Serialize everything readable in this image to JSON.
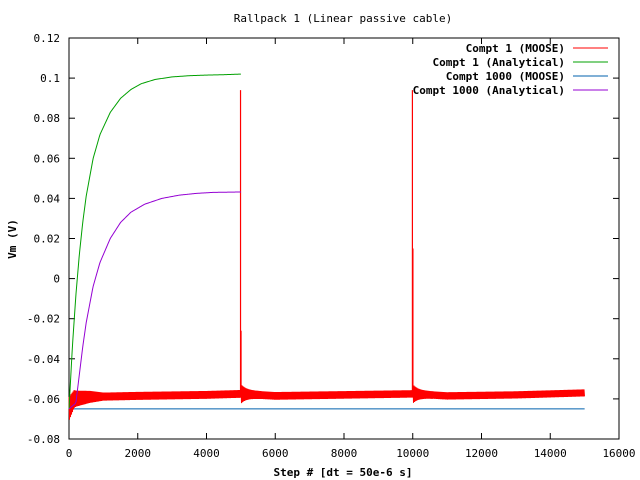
{
  "chart_data": {
    "type": "line",
    "title": "Rallpack 1 (Linear passive cable)",
    "xlabel": "Step # [dt = 50e-6 s]",
    "ylabel": "Vm (V)",
    "xlim": [
      0,
      16000
    ],
    "ylim": [
      -0.08,
      0.12
    ],
    "x_ticks": [
      0,
      2000,
      4000,
      6000,
      8000,
      10000,
      12000,
      14000,
      16000
    ],
    "y_ticks": [
      -0.08,
      -0.06,
      -0.04,
      -0.02,
      0,
      0.02,
      0.04,
      0.06,
      0.08,
      0.1,
      0.12
    ],
    "x_tick_labels": [
      "0",
      "2000",
      "4000",
      "6000",
      "8000",
      "10000",
      "12000",
      "14000",
      "16000"
    ],
    "y_tick_labels": [
      "-0.08",
      "-0.06",
      "-0.04",
      "-0.02",
      "0",
      "0.02",
      "0.04",
      "0.06",
      "0.08",
      "0.1",
      "0.12"
    ],
    "grid": false,
    "legend_position": "top-right",
    "series": [
      {
        "name": "Compt 1 (MOOSE)",
        "color": "#ff0000",
        "baseline_points": [
          [
            0,
            -0.065
          ],
          [
            150,
            -0.06
          ],
          [
            600,
            -0.059
          ],
          [
            2000,
            -0.0585
          ],
          [
            4000,
            -0.058
          ],
          [
            4990,
            -0.0575
          ],
          [
            5000,
            -0.0575
          ],
          [
            6000,
            -0.0585
          ],
          [
            8000,
            -0.058
          ],
          [
            9990,
            -0.0575
          ],
          [
            10000,
            -0.0575
          ],
          [
            11000,
            -0.0585
          ],
          [
            13000,
            -0.058
          ],
          [
            15000,
            -0.057
          ]
        ],
        "noise_envelope": [
          [
            0,
            0.012
          ],
          [
            200,
            0.008
          ],
          [
            1000,
            0.004
          ],
          [
            15000,
            0.0035
          ]
        ],
        "spikes": [
          {
            "x": 4990,
            "peak": 0.094
          },
          {
            "x": 5005,
            "peak": -0.026
          },
          {
            "x": 9990,
            "peak": 0.094
          },
          {
            "x": 10005,
            "peak": 0.015
          }
        ]
      },
      {
        "name": "Compt 1 (Analytical)",
        "color": "#00a000",
        "points": [
          [
            0,
            -0.065
          ],
          [
            100,
            -0.0335
          ],
          [
            200,
            -0.0083
          ],
          [
            300,
            0.0119
          ],
          [
            400,
            0.0281
          ],
          [
            500,
            0.0411
          ],
          [
            700,
            0.0598
          ],
          [
            900,
            0.0718
          ],
          [
            1200,
            0.0829
          ],
          [
            1500,
            0.0899
          ],
          [
            1800,
            0.0943
          ],
          [
            2100,
            0.0972
          ],
          [
            2500,
            0.0993
          ],
          [
            3000,
            0.1006
          ],
          [
            3500,
            0.1012
          ],
          [
            4000,
            0.1015
          ],
          [
            4500,
            0.1017
          ],
          [
            5000,
            0.102
          ]
        ]
      },
      {
        "name": "Compt 1000 (MOOSE)",
        "color": "#0060ad",
        "points": [
          [
            0,
            -0.065
          ],
          [
            15000,
            -0.065
          ]
        ]
      },
      {
        "name": "Compt 1000 (Analytical)",
        "color": "#9400d3",
        "points": [
          [
            0,
            -0.065
          ],
          [
            200,
            -0.062
          ],
          [
            300,
            -0.048
          ],
          [
            400,
            -0.034
          ],
          [
            500,
            -0.022
          ],
          [
            700,
            -0.004
          ],
          [
            900,
            0.008
          ],
          [
            1200,
            0.02
          ],
          [
            1500,
            0.028
          ],
          [
            1800,
            0.0331
          ],
          [
            2200,
            0.0371
          ],
          [
            2700,
            0.04
          ],
          [
            3200,
            0.0416
          ],
          [
            3700,
            0.0425
          ],
          [
            4200,
            0.043
          ],
          [
            5000,
            0.0432
          ]
        ]
      }
    ]
  }
}
